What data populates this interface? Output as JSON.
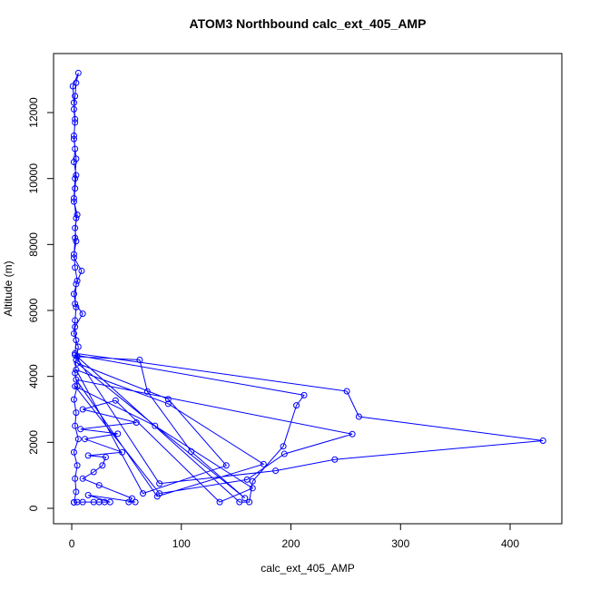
{
  "chart_data": {
    "type": "line",
    "title": "ATOM3 Northbound calc_ext_405_AMP",
    "xlabel": "calc_ext_405_AMP",
    "ylabel": "Altitude (m)",
    "color": "#0000ff",
    "marker": "circle",
    "x": [
      2,
      4,
      3,
      5,
      2,
      6,
      3,
      4,
      2,
      5,
      3,
      4,
      6,
      2,
      3,
      4,
      2,
      5,
      3,
      2,
      4,
      3,
      5,
      2,
      3,
      4,
      2,
      3,
      2,
      3,
      2,
      3,
      4,
      6,
      1,
      2,
      3,
      2,
      4,
      3,
      2,
      4,
      3,
      2,
      9,
      4,
      3,
      10,
      3,
      4,
      3,
      251,
      262,
      430,
      240,
      186,
      80,
      3,
      212,
      205,
      193,
      165,
      162,
      153,
      5,
      62,
      69,
      109,
      158,
      5,
      88,
      141,
      65,
      4,
      88,
      175,
      78,
      4,
      256,
      194,
      160,
      80,
      3,
      76,
      165,
      135,
      40,
      10,
      59,
      8,
      42,
      12,
      46,
      15,
      31,
      28,
      20,
      10,
      25,
      55,
      52,
      58,
      15,
      35,
      30,
      25,
      20,
      10,
      5,
      2
    ],
    "values": [
      180,
      500,
      900,
      1300,
      1700,
      2100,
      2500,
      2900,
      3300,
      3700,
      4100,
      4500,
      4900,
      5300,
      5700,
      6100,
      6500,
      6900,
      7300,
      7700,
      8100,
      8500,
      8900,
      9300,
      9700,
      10100,
      10500,
      10900,
      11300,
      11700,
      12100,
      12500,
      12900,
      13200,
      12800,
      12300,
      11800,
      11200,
      10600,
      10000,
      9400,
      8800,
      8200,
      7600,
      7200,
      6800,
      6200,
      5900,
      5500,
      5100,
      4700,
      3550,
      2780,
      2050,
      1480,
      1140,
      750,
      4650,
      3430,
      3120,
      1880,
      820,
      190,
      190,
      4600,
      4500,
      3540,
      1720,
      310,
      4400,
      3310,
      1300,
      450,
      4200,
      3170,
      1340,
      360,
      3900,
      2250,
      1650,
      870,
      450,
      3700,
      2500,
      610,
      190,
      3270,
      3000,
      2600,
      2400,
      2260,
      2100,
      1700,
      1600,
      1550,
      1300,
      1100,
      900,
      700,
      300,
      190,
      190,
      400,
      190,
      190,
      190,
      190,
      190,
      190,
      180
    ],
    "xlim": [
      -16.6,
      447.2
    ],
    "ylim": [
      -468,
      13790
    ],
    "xticks": [
      0,
      100,
      200,
      300,
      400
    ],
    "yticks": [
      0,
      2000,
      4000,
      6000,
      8000,
      10000,
      12000
    ]
  }
}
